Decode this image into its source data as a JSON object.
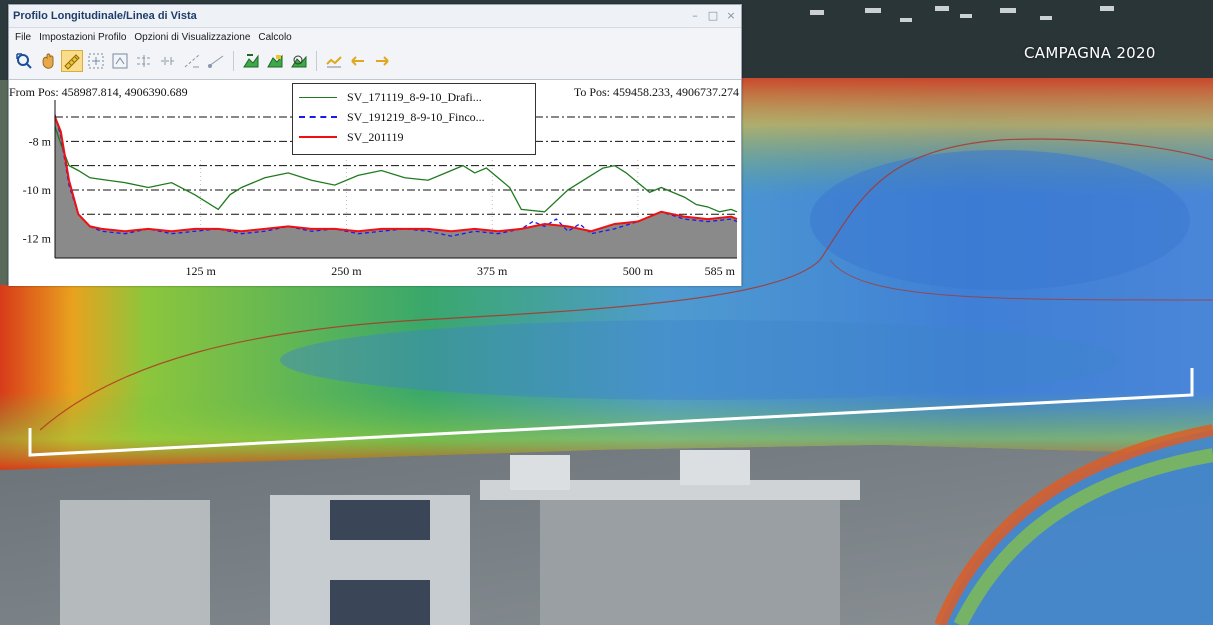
{
  "map": {
    "campaign_label": "CAMPAGNA 2020"
  },
  "window": {
    "title": "Profilo Longitudinale/Linea di Vista",
    "buttons": {
      "minimize": "–",
      "maximize": "□",
      "close": "×"
    },
    "menu": [
      "File",
      "Impostazioni Profilo",
      "Opzioni di Visualizzazione",
      "Calcolo"
    ],
    "toolbar_icons": [
      "pick-profile-icon",
      "pan-hand-icon",
      "ruler-icon",
      "zoom-box-icon",
      "zoom-extent-icon",
      "horizontal-line-icon",
      "horizontal-line-2-icon",
      "slope-line-icon",
      "line-of-sight-icon",
      "terrain-up-icon",
      "terrain-icon",
      "terrain-find-icon",
      "profile-yellow-icon",
      "profile-left-icon",
      "profile-right-icon"
    ],
    "from_pos": "From Pos: 458987.814, 4906390.689",
    "to_pos": "To Pos: 459458.233, 4906737.274"
  },
  "chart_data": {
    "type": "line",
    "xlabel": "",
    "ylabel": "",
    "xlim": [
      0,
      585
    ],
    "ylim": [
      -12.8,
      -6.3
    ],
    "x_ticks": [
      {
        "value": 125,
        "label": "125 m"
      },
      {
        "value": 250,
        "label": "250 m"
      },
      {
        "value": 375,
        "label": "375 m"
      },
      {
        "value": 500,
        "label": "500 m"
      },
      {
        "value": 585,
        "label": "585 m"
      }
    ],
    "y_ticks": [
      {
        "value": -8,
        "label": "-8 m"
      },
      {
        "value": -10,
        "label": "-10 m"
      },
      {
        "value": -12,
        "label": "-12 m"
      }
    ],
    "reference_lines": [
      -7,
      -8,
      -9,
      -10,
      -11,
      -12
    ],
    "legend_position": "top",
    "series": [
      {
        "name": "SV_171119_8-9-10_Drafi...",
        "color": "#1f7a1f",
        "style": "solid",
        "x": [
          0,
          5,
          12,
          20,
          30,
          45,
          60,
          80,
          100,
          120,
          140,
          150,
          160,
          180,
          200,
          220,
          240,
          260,
          280,
          300,
          320,
          340,
          350,
          360,
          370,
          380,
          390,
          400,
          420,
          440,
          460,
          470,
          480,
          490,
          500,
          510,
          520,
          530,
          540,
          550,
          560,
          570,
          580,
          585
        ],
        "y": [
          -7.4,
          -8.1,
          -9.0,
          -9.2,
          -9.5,
          -9.6,
          -9.7,
          -9.9,
          -9.7,
          -10.2,
          -10.8,
          -10.2,
          -9.9,
          -9.5,
          -9.3,
          -9.6,
          -9.8,
          -9.4,
          -9.2,
          -9.5,
          -9.6,
          -9.2,
          -9.0,
          -9.3,
          -9.1,
          -9.5,
          -9.9,
          -10.8,
          -10.9,
          -10.0,
          -9.4,
          -9.1,
          -9.0,
          -9.3,
          -9.7,
          -10.1,
          -9.9,
          -10.1,
          -10.3,
          -10.6,
          -10.7,
          -10.9,
          -10.8,
          -10.9
        ]
      },
      {
        "name": "SV_191219_8-9-10_Finco...",
        "color": "#1a1aee",
        "style": "dashed",
        "x": [
          0,
          5,
          12,
          20,
          30,
          40,
          60,
          80,
          100,
          120,
          140,
          160,
          180,
          200,
          220,
          240,
          260,
          280,
          300,
          320,
          340,
          360,
          380,
          400,
          410,
          420,
          430,
          440,
          450,
          460,
          480,
          500,
          520,
          540,
          560,
          580,
          585
        ],
        "y": [
          -6.9,
          -7.8,
          -9.8,
          -11.0,
          -11.5,
          -11.7,
          -11.8,
          -11.6,
          -11.8,
          -11.7,
          -11.6,
          -11.8,
          -11.7,
          -11.5,
          -11.7,
          -11.6,
          -11.8,
          -11.7,
          -11.6,
          -11.7,
          -11.9,
          -11.7,
          -11.8,
          -11.6,
          -11.3,
          -11.5,
          -11.2,
          -11.7,
          -11.4,
          -11.8,
          -11.6,
          -11.3,
          -10.9,
          -11.2,
          -11.3,
          -11.2,
          -11.3
        ]
      },
      {
        "name": "SV_201119",
        "color": "#ee1111",
        "style": "solid",
        "x": [
          0,
          5,
          12,
          20,
          30,
          40,
          60,
          80,
          100,
          120,
          140,
          160,
          180,
          200,
          220,
          240,
          260,
          280,
          300,
          320,
          340,
          360,
          380,
          400,
          420,
          440,
          460,
          480,
          500,
          520,
          540,
          560,
          580,
          585
        ],
        "y": [
          -7.0,
          -7.6,
          -9.6,
          -11.0,
          -11.5,
          -11.6,
          -11.7,
          -11.6,
          -11.7,
          -11.6,
          -11.6,
          -11.7,
          -11.6,
          -11.5,
          -11.6,
          -11.6,
          -11.7,
          -11.6,
          -11.6,
          -11.6,
          -11.7,
          -11.6,
          -11.7,
          -11.6,
          -11.4,
          -11.5,
          -11.7,
          -11.4,
          -11.3,
          -10.9,
          -11.1,
          -11.2,
          -11.1,
          -11.2
        ]
      }
    ]
  }
}
